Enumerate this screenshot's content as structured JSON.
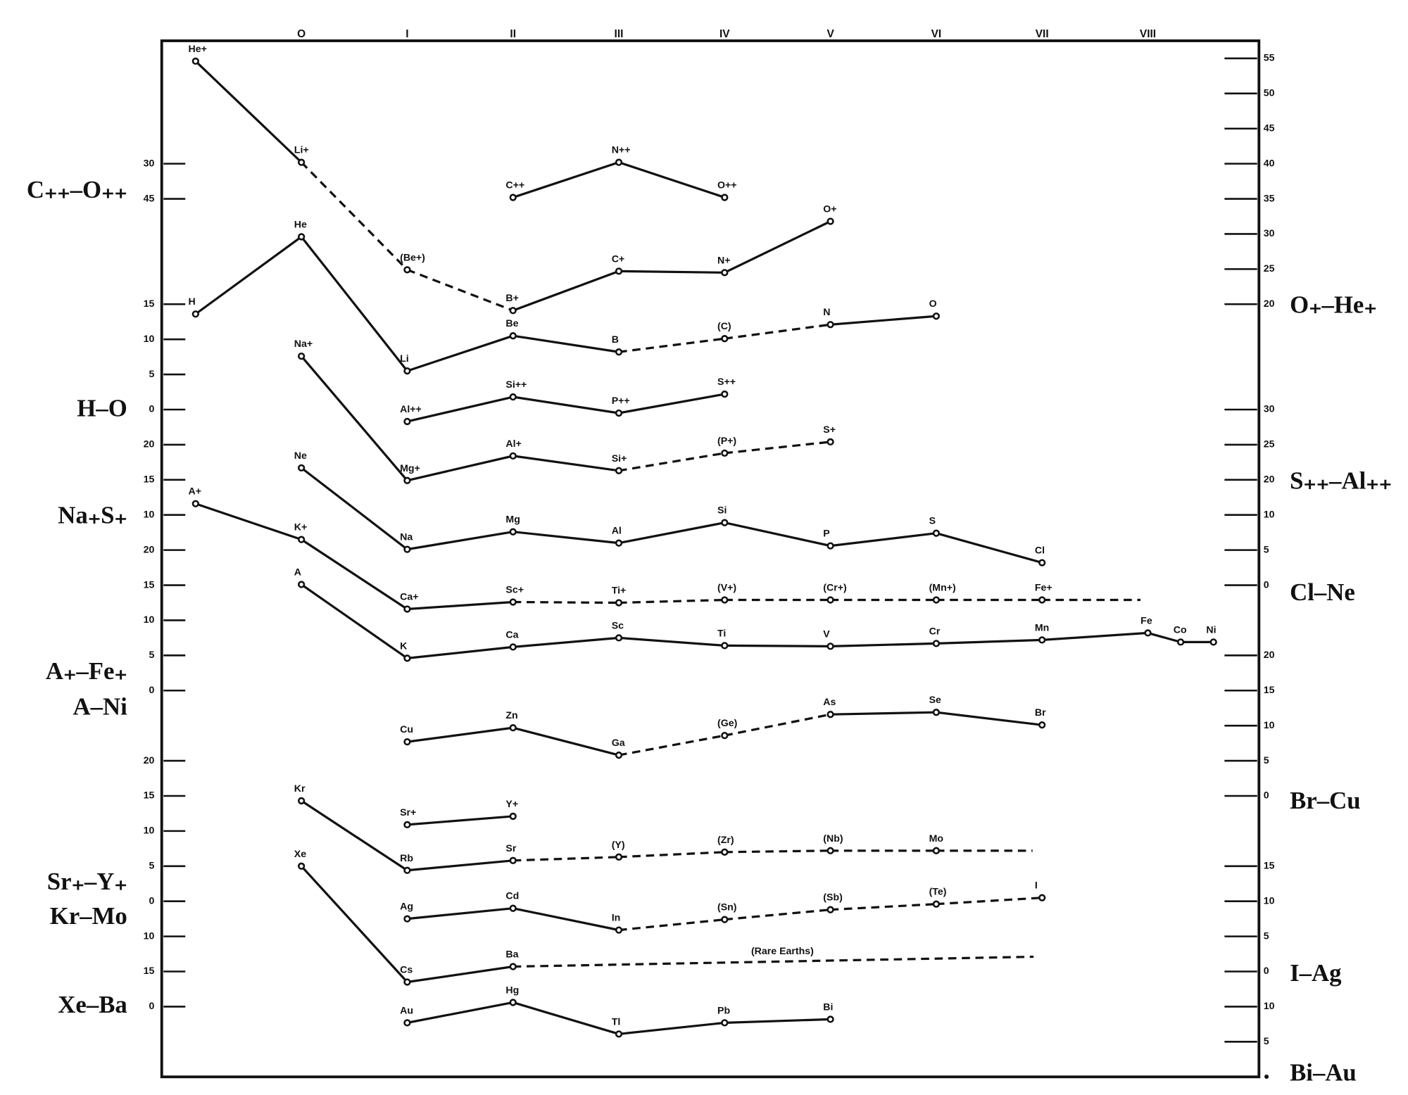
{
  "chart_data": {
    "type": "line",
    "color": "#111111",
    "xlim": [
      -1.32,
      9.05
    ],
    "xticks": [
      {
        "value": 0,
        "label": "O"
      },
      {
        "value": 1,
        "label": "I"
      },
      {
        "value": 2,
        "label": "II"
      },
      {
        "value": 3,
        "label": "III"
      },
      {
        "value": 4,
        "label": "IV"
      },
      {
        "value": 5,
        "label": "V"
      },
      {
        "value": 6,
        "label": "VI"
      },
      {
        "value": 7,
        "label": "VII"
      },
      {
        "value": 8,
        "label": "VIII"
      }
    ],
    "ylim": [
      0,
      147.5
    ],
    "yticks": [
      {
        "value": 130,
        "label": "30"
      },
      {
        "value": 125,
        "label": "45"
      },
      {
        "value": 110,
        "label": "15"
      },
      {
        "value": 105,
        "label": "10"
      },
      {
        "value": 100,
        "label": "5"
      },
      {
        "value": 95,
        "label": "0"
      },
      {
        "value": 90,
        "label": "20"
      },
      {
        "value": 85,
        "label": "15"
      },
      {
        "value": 80,
        "label": "10"
      },
      {
        "value": 75,
        "label": "20"
      },
      {
        "value": 70,
        "label": "15"
      },
      {
        "value": 65,
        "label": "10"
      },
      {
        "value": 60,
        "label": "5"
      },
      {
        "value": 55,
        "label": "0"
      },
      {
        "value": 45,
        "label": "20"
      },
      {
        "value": 40,
        "label": "15"
      },
      {
        "value": 35,
        "label": "10"
      },
      {
        "value": 30,
        "label": "5"
      },
      {
        "value": 25,
        "label": "0"
      },
      {
        "value": 20,
        "label": "10"
      },
      15,
      {
        "value": 10,
        "label": "0"
      }
    ],
    "y2lim": [
      0,
      147.5
    ],
    "y2ticks": [
      {
        "value": 145,
        "label": "55"
      },
      {
        "value": 140,
        "label": "50"
      },
      {
        "value": 135,
        "label": "45"
      },
      {
        "value": 130,
        "label": "40"
      },
      {
        "value": 125,
        "label": "35"
      },
      {
        "value": 120,
        "label": "30"
      },
      {
        "value": 115,
        "label": "25"
      },
      {
        "value": 110,
        "label": "20"
      },
      {
        "value": 95,
        "label": "30"
      },
      {
        "value": 90,
        "label": "25"
      },
      {
        "value": 85,
        "label": "20"
      },
      {
        "value": 80,
        "label": "10"
      },
      {
        "value": 75,
        "label": "5"
      },
      {
        "value": 70,
        "label": "0"
      },
      {
        "value": 60,
        "label": "20"
      },
      {
        "value": 55,
        "label": "15"
      },
      {
        "value": 50,
        "label": "10"
      },
      {
        "value": 45,
        "label": "5"
      },
      {
        "value": 40,
        "label": "0"
      },
      {
        "value": 30,
        "label": "15"
      },
      {
        "value": 25,
        "label": "10"
      },
      {
        "value": 20,
        "label": "5"
      },
      {
        "value": 15,
        "label": "0"
      },
      10,
      5,
      {
        "value": 0,
        "label": "●"
      }
    ],
    "group_labels": {
      "left": [
        "C₊₊–O₊₊",
        "H–O",
        "Na₊S₊",
        "A₊–Fe₊",
        "A–Ni",
        "Sr₊–Y₊",
        "Kr–Mo",
        "Xe–Ba"
      ],
      "right": [
        "O₊–He₊",
        "S₊₊–Al₊₊",
        "Cl–Ne",
        "Br–Cu",
        "I–Ag",
        "Bi–Au"
      ]
    },
    "annotations": [
      "(Rare Earths)"
    ],
    "series": [
      {
        "x": [
          -1,
          0,
          1,
          2,
          3,
          4,
          5
        ],
        "values": [
          144.6,
          130.2,
          114.9,
          109.1,
          114.7,
          114.5,
          121.8
        ],
        "point_labels": [
          "He+",
          "Li+",
          "(Be+)",
          "B+",
          "C+",
          "N+",
          "O+"
        ],
        "line_styles": [
          "solid",
          "dashed",
          "dashed",
          "solid",
          "solid",
          "solid"
        ]
      },
      {
        "x": [
          2,
          3,
          4
        ],
        "values": [
          125.2,
          130.2,
          125.2
        ],
        "point_labels": [
          "C++",
          "N++",
          "O++"
        ],
        "line_styles": [
          "solid",
          "solid"
        ]
      },
      {
        "x": [
          -1,
          0,
          1,
          2,
          3,
          4,
          5,
          6
        ],
        "values": [
          108.6,
          119.6,
          100.5,
          105.5,
          103.2,
          105.1,
          107.1,
          108.3
        ],
        "point_labels": [
          "H",
          "He",
          "Li",
          "Be",
          "B",
          "(C)",
          "N",
          "O"
        ],
        "line_styles": [
          "solid",
          "solid",
          "solid",
          "solid",
          "dashed",
          "dashed",
          "solid"
        ]
      },
      {
        "x": [
          1,
          2,
          3,
          4
        ],
        "values": [
          93.3,
          96.8,
          94.5,
          97.2
        ],
        "point_labels": [
          "Al++",
          "Si++",
          "P++",
          "S++"
        ],
        "line_styles": [
          "solid",
          "solid",
          "solid"
        ]
      },
      {
        "x": [
          0,
          1,
          2,
          3,
          4,
          5
        ],
        "values": [
          102.6,
          84.9,
          88.4,
          86.3,
          88.8,
          90.4
        ],
        "point_labels": [
          "Na+",
          "Mg+",
          "Al+",
          "Si+",
          "(P+)",
          "S+"
        ],
        "line_styles": [
          "solid",
          "solid",
          "solid",
          "dashed",
          "dashed"
        ]
      },
      {
        "x": [
          0,
          1,
          2,
          3,
          4,
          5,
          6,
          7
        ],
        "values": [
          86.7,
          75.1,
          77.6,
          76.0,
          78.9,
          75.6,
          77.4,
          73.2
        ],
        "point_labels": [
          "Ne",
          "Na",
          "Mg",
          "Al",
          "Si",
          "P",
          "S",
          "Cl"
        ],
        "line_styles": [
          "solid",
          "solid",
          "solid",
          "solid",
          "solid",
          "solid",
          "solid"
        ]
      },
      {
        "x": [
          -1,
          0,
          1,
          2,
          3,
          4,
          5,
          6,
          7,
          7.93
        ],
        "values": [
          81.6,
          76.5,
          66.6,
          67.6,
          67.5,
          67.9,
          67.9,
          67.9,
          67.9,
          67.9
        ],
        "point_labels": [
          "A+",
          "K+",
          "Ca+",
          "Sc+",
          "Ti+",
          "(V+)",
          "(Cr+)",
          "(Mn+)",
          "Fe+",
          null
        ],
        "line_styles": [
          "solid",
          "solid",
          "solid",
          "dashed",
          "dashed",
          "dashed",
          "dashed",
          "dashed",
          "dashed"
        ]
      },
      {
        "x": [
          0,
          1,
          2,
          3,
          4,
          5,
          6,
          7,
          8,
          8.31,
          8.62
        ],
        "values": [
          70.1,
          59.6,
          61.2,
          62.5,
          61.4,
          61.3,
          61.7,
          62.2,
          63.2,
          61.9,
          61.9
        ],
        "point_labels": [
          "A",
          "K",
          "Ca",
          "Sc",
          "Ti",
          "V",
          "Cr",
          "Mn",
          "Fe",
          "Co",
          "Ni"
        ],
        "line_styles": [
          "solid",
          "solid",
          "solid",
          "solid",
          "solid",
          "solid",
          "solid",
          "solid",
          "solid",
          "solid"
        ]
      },
      {
        "x": [
          1,
          2,
          3,
          4,
          5,
          6,
          7
        ],
        "values": [
          47.7,
          49.7,
          45.8,
          48.6,
          51.6,
          51.9,
          50.1
        ],
        "point_labels": [
          "Cu",
          "Zn",
          "Ga",
          "(Ge)",
          "As",
          "Se",
          "Br"
        ],
        "line_styles": [
          "solid",
          "solid",
          "dashed",
          "dashed",
          "solid",
          "solid"
        ]
      },
      {
        "x": [
          1,
          2
        ],
        "values": [
          35.9,
          37.1
        ],
        "point_labels": [
          "Sr+",
          "Y+"
        ],
        "line_styles": [
          "solid"
        ]
      },
      {
        "x": [
          0,
          1,
          2,
          3,
          4,
          5,
          6,
          6.91
        ],
        "values": [
          39.3,
          29.4,
          30.8,
          31.3,
          32.0,
          32.2,
          32.2,
          32.2
        ],
        "point_labels": [
          "Kr",
          "Rb",
          "Sr",
          "(Y)",
          "(Zr)",
          "(Nb)",
          "Mo",
          null
        ],
        "line_styles": [
          "solid",
          "solid",
          "dashed",
          "dashed",
          "dashed",
          "dashed",
          "dashed"
        ]
      },
      {
        "x": [
          1,
          2,
          3,
          4,
          5,
          6,
          7
        ],
        "values": [
          22.5,
          24.0,
          20.9,
          22.4,
          23.8,
          24.6,
          25.5
        ],
        "point_labels": [
          "Ag",
          "Cd",
          "In",
          "(Sn)",
          "(Sb)",
          "(Te)",
          "I"
        ],
        "line_styles": [
          "solid",
          "solid",
          "dashed",
          "dashed",
          "dashed",
          "dashed"
        ]
      },
      {
        "x": [
          0,
          1,
          2,
          6.92
        ],
        "values": [
          30.0,
          13.5,
          15.7,
          17.1
        ],
        "point_labels": [
          "Xe",
          "Cs",
          "Ba",
          null
        ],
        "line_styles": [
          "solid",
          "solid",
          "dashed"
        ]
      },
      {
        "x": [
          1,
          2,
          3,
          4,
          5
        ],
        "values": [
          7.7,
          10.6,
          6.1,
          7.7,
          8.2
        ],
        "point_labels": [
          "Au",
          "Hg",
          "Tl",
          "Pb",
          "Bi"
        ],
        "line_styles": [
          "solid",
          "solid",
          "solid",
          "solid"
        ]
      }
    ]
  }
}
